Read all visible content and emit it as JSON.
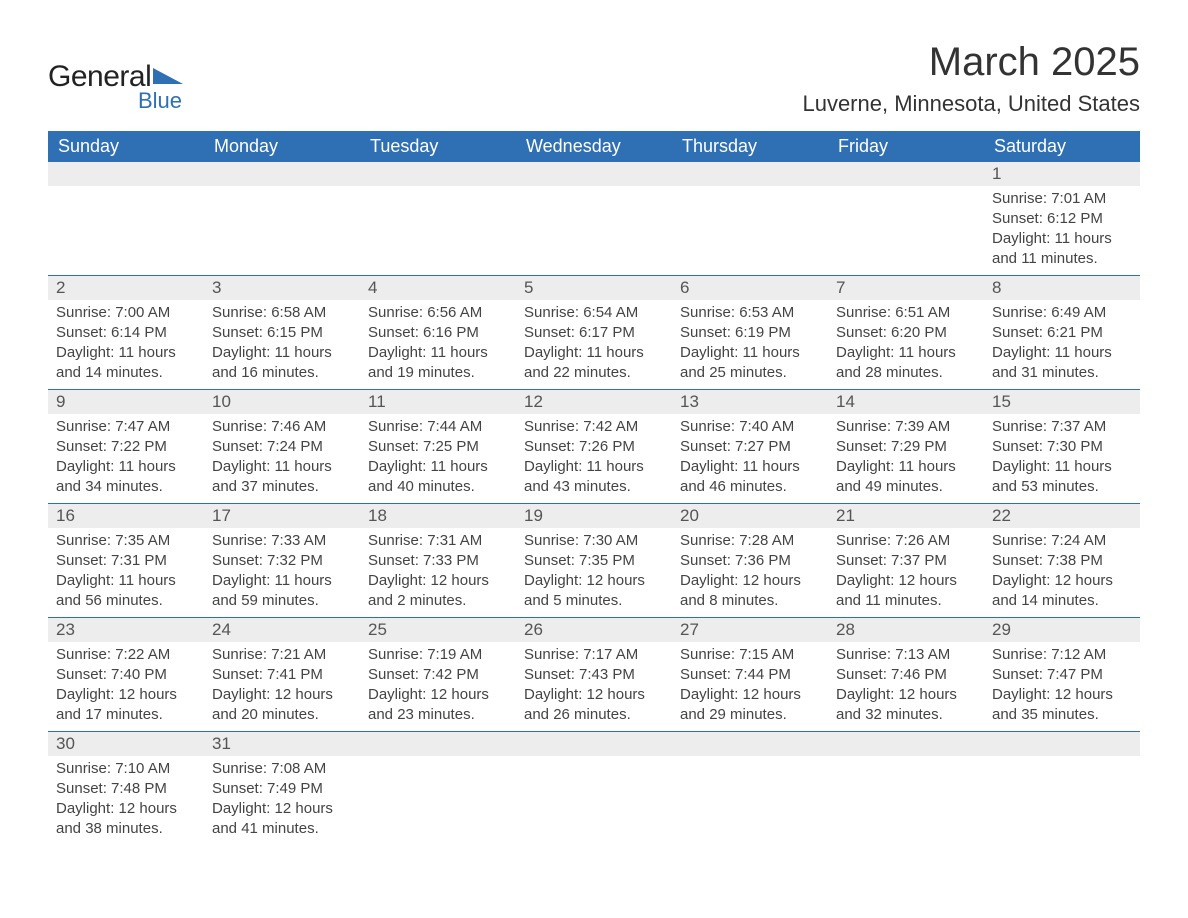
{
  "logo": {
    "general": "General",
    "blue": "Blue",
    "mark_color": "#2f6fb3"
  },
  "title": "March 2025",
  "location": "Luverne, Minnesota, United States",
  "colors": {
    "header_bg": "#2f6fb3",
    "header_text": "#ffffff",
    "daynum_bg": "#ededed",
    "row_divider": "#2f6fb3",
    "body_text": "#444444",
    "title_text": "#333333"
  },
  "fonts": {
    "title_size_pt": 40,
    "location_size_pt": 22,
    "dayheader_size_pt": 18,
    "daynum_size_pt": 17,
    "body_size_pt": 15
  },
  "day_headers": [
    "Sunday",
    "Monday",
    "Tuesday",
    "Wednesday",
    "Thursday",
    "Friday",
    "Saturday"
  ],
  "weeks": [
    [
      null,
      null,
      null,
      null,
      null,
      null,
      {
        "n": "1",
        "sunrise": "Sunrise: 7:01 AM",
        "sunset": "Sunset: 6:12 PM",
        "daylight_a": "Daylight: 11 hours",
        "daylight_b": "and 11 minutes."
      }
    ],
    [
      {
        "n": "2",
        "sunrise": "Sunrise: 7:00 AM",
        "sunset": "Sunset: 6:14 PM",
        "daylight_a": "Daylight: 11 hours",
        "daylight_b": "and 14 minutes."
      },
      {
        "n": "3",
        "sunrise": "Sunrise: 6:58 AM",
        "sunset": "Sunset: 6:15 PM",
        "daylight_a": "Daylight: 11 hours",
        "daylight_b": "and 16 minutes."
      },
      {
        "n": "4",
        "sunrise": "Sunrise: 6:56 AM",
        "sunset": "Sunset: 6:16 PM",
        "daylight_a": "Daylight: 11 hours",
        "daylight_b": "and 19 minutes."
      },
      {
        "n": "5",
        "sunrise": "Sunrise: 6:54 AM",
        "sunset": "Sunset: 6:17 PM",
        "daylight_a": "Daylight: 11 hours",
        "daylight_b": "and 22 minutes."
      },
      {
        "n": "6",
        "sunrise": "Sunrise: 6:53 AM",
        "sunset": "Sunset: 6:19 PM",
        "daylight_a": "Daylight: 11 hours",
        "daylight_b": "and 25 minutes."
      },
      {
        "n": "7",
        "sunrise": "Sunrise: 6:51 AM",
        "sunset": "Sunset: 6:20 PM",
        "daylight_a": "Daylight: 11 hours",
        "daylight_b": "and 28 minutes."
      },
      {
        "n": "8",
        "sunrise": "Sunrise: 6:49 AM",
        "sunset": "Sunset: 6:21 PM",
        "daylight_a": "Daylight: 11 hours",
        "daylight_b": "and 31 minutes."
      }
    ],
    [
      {
        "n": "9",
        "sunrise": "Sunrise: 7:47 AM",
        "sunset": "Sunset: 7:22 PM",
        "daylight_a": "Daylight: 11 hours",
        "daylight_b": "and 34 minutes."
      },
      {
        "n": "10",
        "sunrise": "Sunrise: 7:46 AM",
        "sunset": "Sunset: 7:24 PM",
        "daylight_a": "Daylight: 11 hours",
        "daylight_b": "and 37 minutes."
      },
      {
        "n": "11",
        "sunrise": "Sunrise: 7:44 AM",
        "sunset": "Sunset: 7:25 PM",
        "daylight_a": "Daylight: 11 hours",
        "daylight_b": "and 40 minutes."
      },
      {
        "n": "12",
        "sunrise": "Sunrise: 7:42 AM",
        "sunset": "Sunset: 7:26 PM",
        "daylight_a": "Daylight: 11 hours",
        "daylight_b": "and 43 minutes."
      },
      {
        "n": "13",
        "sunrise": "Sunrise: 7:40 AM",
        "sunset": "Sunset: 7:27 PM",
        "daylight_a": "Daylight: 11 hours",
        "daylight_b": "and 46 minutes."
      },
      {
        "n": "14",
        "sunrise": "Sunrise: 7:39 AM",
        "sunset": "Sunset: 7:29 PM",
        "daylight_a": "Daylight: 11 hours",
        "daylight_b": "and 49 minutes."
      },
      {
        "n": "15",
        "sunrise": "Sunrise: 7:37 AM",
        "sunset": "Sunset: 7:30 PM",
        "daylight_a": "Daylight: 11 hours",
        "daylight_b": "and 53 minutes."
      }
    ],
    [
      {
        "n": "16",
        "sunrise": "Sunrise: 7:35 AM",
        "sunset": "Sunset: 7:31 PM",
        "daylight_a": "Daylight: 11 hours",
        "daylight_b": "and 56 minutes."
      },
      {
        "n": "17",
        "sunrise": "Sunrise: 7:33 AM",
        "sunset": "Sunset: 7:32 PM",
        "daylight_a": "Daylight: 11 hours",
        "daylight_b": "and 59 minutes."
      },
      {
        "n": "18",
        "sunrise": "Sunrise: 7:31 AM",
        "sunset": "Sunset: 7:33 PM",
        "daylight_a": "Daylight: 12 hours",
        "daylight_b": "and 2 minutes."
      },
      {
        "n": "19",
        "sunrise": "Sunrise: 7:30 AM",
        "sunset": "Sunset: 7:35 PM",
        "daylight_a": "Daylight: 12 hours",
        "daylight_b": "and 5 minutes."
      },
      {
        "n": "20",
        "sunrise": "Sunrise: 7:28 AM",
        "sunset": "Sunset: 7:36 PM",
        "daylight_a": "Daylight: 12 hours",
        "daylight_b": "and 8 minutes."
      },
      {
        "n": "21",
        "sunrise": "Sunrise: 7:26 AM",
        "sunset": "Sunset: 7:37 PM",
        "daylight_a": "Daylight: 12 hours",
        "daylight_b": "and 11 minutes."
      },
      {
        "n": "22",
        "sunrise": "Sunrise: 7:24 AM",
        "sunset": "Sunset: 7:38 PM",
        "daylight_a": "Daylight: 12 hours",
        "daylight_b": "and 14 minutes."
      }
    ],
    [
      {
        "n": "23",
        "sunrise": "Sunrise: 7:22 AM",
        "sunset": "Sunset: 7:40 PM",
        "daylight_a": "Daylight: 12 hours",
        "daylight_b": "and 17 minutes."
      },
      {
        "n": "24",
        "sunrise": "Sunrise: 7:21 AM",
        "sunset": "Sunset: 7:41 PM",
        "daylight_a": "Daylight: 12 hours",
        "daylight_b": "and 20 minutes."
      },
      {
        "n": "25",
        "sunrise": "Sunrise: 7:19 AM",
        "sunset": "Sunset: 7:42 PM",
        "daylight_a": "Daylight: 12 hours",
        "daylight_b": "and 23 minutes."
      },
      {
        "n": "26",
        "sunrise": "Sunrise: 7:17 AM",
        "sunset": "Sunset: 7:43 PM",
        "daylight_a": "Daylight: 12 hours",
        "daylight_b": "and 26 minutes."
      },
      {
        "n": "27",
        "sunrise": "Sunrise: 7:15 AM",
        "sunset": "Sunset: 7:44 PM",
        "daylight_a": "Daylight: 12 hours",
        "daylight_b": "and 29 minutes."
      },
      {
        "n": "28",
        "sunrise": "Sunrise: 7:13 AM",
        "sunset": "Sunset: 7:46 PM",
        "daylight_a": "Daylight: 12 hours",
        "daylight_b": "and 32 minutes."
      },
      {
        "n": "29",
        "sunrise": "Sunrise: 7:12 AM",
        "sunset": "Sunset: 7:47 PM",
        "daylight_a": "Daylight: 12 hours",
        "daylight_b": "and 35 minutes."
      }
    ],
    [
      {
        "n": "30",
        "sunrise": "Sunrise: 7:10 AM",
        "sunset": "Sunset: 7:48 PM",
        "daylight_a": "Daylight: 12 hours",
        "daylight_b": "and 38 minutes."
      },
      {
        "n": "31",
        "sunrise": "Sunrise: 7:08 AM",
        "sunset": "Sunset: 7:49 PM",
        "daylight_a": "Daylight: 12 hours",
        "daylight_b": "and 41 minutes."
      },
      null,
      null,
      null,
      null,
      null
    ]
  ]
}
